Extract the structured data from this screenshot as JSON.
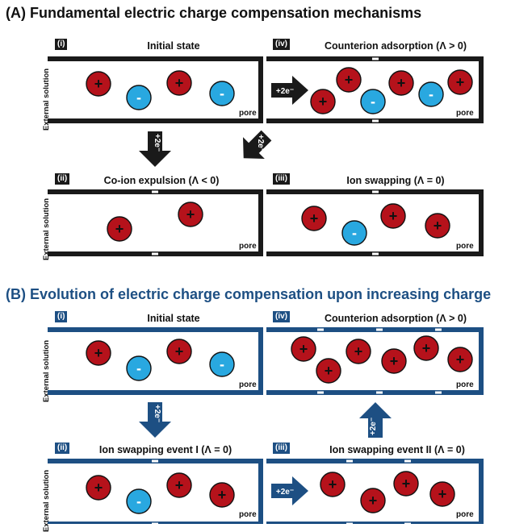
{
  "section_a": {
    "title": "(A) Fundamental electric charge compensation mechanisms",
    "panels": [
      {
        "tag": "(i)",
        "title": "Initial state"
      },
      {
        "tag": "(ii)",
        "title": "Co-ion expulsion (Λ < 0)"
      },
      {
        "tag": "(iii)",
        "title": "Ion swapping (Λ = 0)"
      },
      {
        "tag": "(iv)",
        "title": "Counterion adsorption (Λ > 0)"
      }
    ]
  },
  "section_b": {
    "title": "(B) Evolution of electric charge compensation upon increasing charge",
    "panels": [
      {
        "tag": "(i)",
        "title": "Initial state"
      },
      {
        "tag": "(ii)",
        "title": "Ion swapping event I (Λ = 0)"
      },
      {
        "tag": "(iii)",
        "title": "Ion swapping event II (Λ = 0)"
      },
      {
        "tag": "(iv)",
        "title": "Counterion adsorption (Λ > 0)"
      }
    ]
  },
  "labels": {
    "external_solution": "External solution",
    "pore": "pore",
    "charge_step": "+2e⁻",
    "cation_sign": "+",
    "anion_sign": "-",
    "electrode_charge": "-"
  },
  "colors": {
    "cation": "#b5121b",
    "anion": "#29a8e0",
    "frame_a": "#1a1a1a",
    "frame_b": "#1d4f83"
  }
}
